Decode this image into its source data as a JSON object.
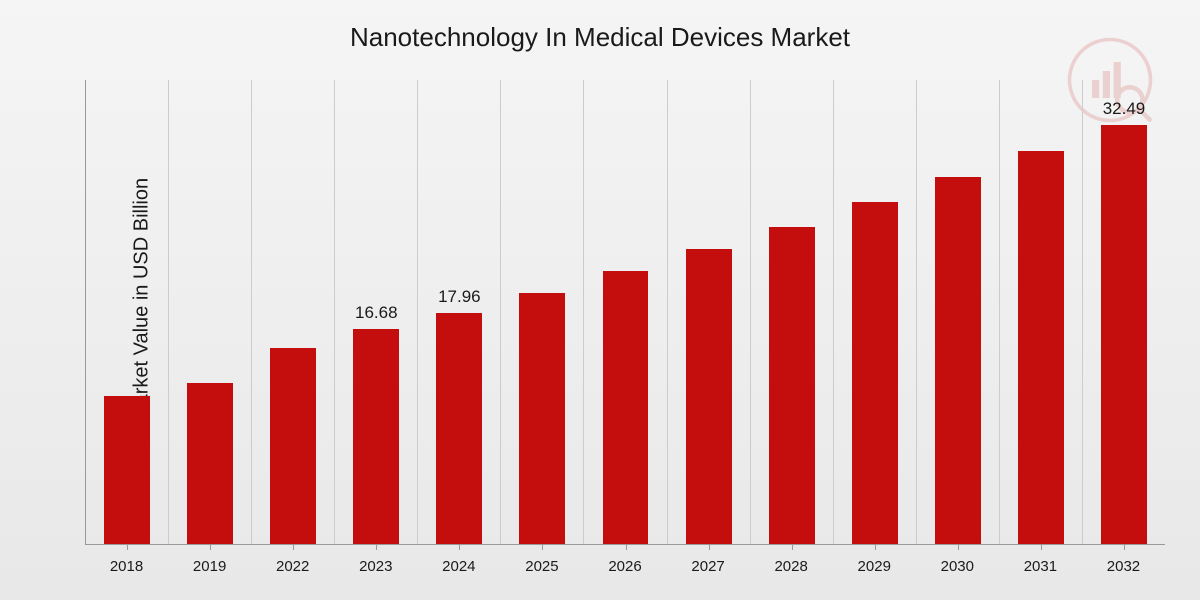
{
  "chart": {
    "type": "bar",
    "title": "Nanotechnology In Medical Devices Market",
    "ylabel": "Market Value in USD Billion",
    "title_fontsize": 26,
    "label_fontsize": 20,
    "xlabel_fontsize": 15,
    "value_label_fontsize": 17,
    "categories": [
      "2018",
      "2019",
      "2022",
      "2023",
      "2024",
      "2025",
      "2026",
      "2027",
      "2028",
      "2029",
      "2030",
      "2031",
      "2032"
    ],
    "values": [
      11.5,
      12.5,
      15.2,
      16.68,
      17.96,
      19.5,
      21.2,
      22.9,
      24.6,
      26.5,
      28.5,
      30.5,
      32.49
    ],
    "visible_labels": {
      "3": "16.68",
      "4": "17.96",
      "12": "32.49"
    },
    "ylim": [
      0,
      36
    ],
    "bar_color": "#c40e0e",
    "bar_width": 0.56,
    "background_gradient": [
      "#f5f5f5",
      "#e8e8e8"
    ],
    "grid_color": "#cccccc",
    "axis_color": "#999999",
    "text_color": "#1a1a1a",
    "watermark_color": "#c40e0e",
    "watermark_opacity": 0.15
  }
}
